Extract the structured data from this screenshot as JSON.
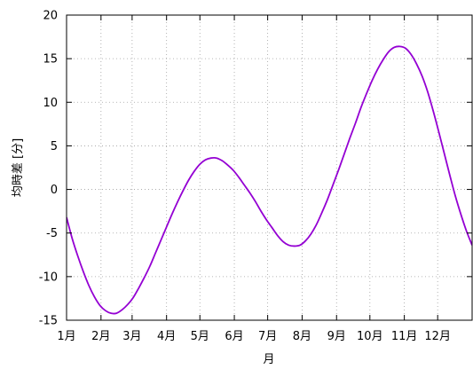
{
  "chart_data": {
    "type": "line",
    "title": "",
    "xlabel": "月",
    "ylabel": "均時差 [分]",
    "x_tick_labels": [
      "1月",
      "2月",
      "3月",
      "4月",
      "5月",
      "6月",
      "7月",
      "8月",
      "9月",
      "10月",
      "11月",
      "12月"
    ],
    "y_ticks": [
      -15,
      -10,
      -5,
      0,
      5,
      10,
      15,
      20
    ],
    "ylim": [
      -15,
      20
    ],
    "xlim_days": [
      0,
      365
    ],
    "grid": true,
    "legend": "none",
    "series": [
      {
        "color": "#9400d3",
        "points_day_minutes": [
          [
            0,
            -3.2
          ],
          [
            5,
            -5.6
          ],
          [
            10,
            -7.6
          ],
          [
            15,
            -9.4
          ],
          [
            20,
            -11.0
          ],
          [
            25,
            -12.3
          ],
          [
            30,
            -13.3
          ],
          [
            35,
            -13.9
          ],
          [
            40,
            -14.2
          ],
          [
            45,
            -14.2
          ],
          [
            50,
            -13.8
          ],
          [
            55,
            -13.2
          ],
          [
            60,
            -12.4
          ],
          [
            65,
            -11.3
          ],
          [
            70,
            -10.1
          ],
          [
            75,
            -8.8
          ],
          [
            80,
            -7.3
          ],
          [
            85,
            -5.8
          ],
          [
            90,
            -4.3
          ],
          [
            95,
            -2.8
          ],
          [
            100,
            -1.4
          ],
          [
            105,
            -0.1
          ],
          [
            110,
            1.1
          ],
          [
            115,
            2.1
          ],
          [
            120,
            2.9
          ],
          [
            125,
            3.4
          ],
          [
            130,
            3.6
          ],
          [
            135,
            3.6
          ],
          [
            140,
            3.3
          ],
          [
            145,
            2.8
          ],
          [
            150,
            2.2
          ],
          [
            155,
            1.4
          ],
          [
            160,
            0.5
          ],
          [
            165,
            -0.4
          ],
          [
            170,
            -1.4
          ],
          [
            175,
            -2.5
          ],
          [
            180,
            -3.5
          ],
          [
            185,
            -4.4
          ],
          [
            190,
            -5.3
          ],
          [
            195,
            -6.0
          ],
          [
            200,
            -6.4
          ],
          [
            205,
            -6.5
          ],
          [
            210,
            -6.4
          ],
          [
            215,
            -5.9
          ],
          [
            220,
            -5.1
          ],
          [
            225,
            -4.0
          ],
          [
            230,
            -2.6
          ],
          [
            235,
            -1.1
          ],
          [
            240,
            0.6
          ],
          [
            245,
            2.3
          ],
          [
            250,
            4.1
          ],
          [
            255,
            5.9
          ],
          [
            260,
            7.6
          ],
          [
            265,
            9.4
          ],
          [
            270,
            11.0
          ],
          [
            275,
            12.5
          ],
          [
            280,
            13.8
          ],
          [
            285,
            14.9
          ],
          [
            290,
            15.8
          ],
          [
            295,
            16.3
          ],
          [
            300,
            16.4
          ],
          [
            305,
            16.2
          ],
          [
            310,
            15.5
          ],
          [
            315,
            14.4
          ],
          [
            320,
            13.0
          ],
          [
            325,
            11.2
          ],
          [
            330,
            9.0
          ],
          [
            335,
            6.6
          ],
          [
            340,
            4.1
          ],
          [
            345,
            1.6
          ],
          [
            350,
            -0.8
          ],
          [
            355,
            -2.9
          ],
          [
            360,
            -4.8
          ],
          [
            365,
            -6.4
          ]
        ]
      }
    ]
  }
}
